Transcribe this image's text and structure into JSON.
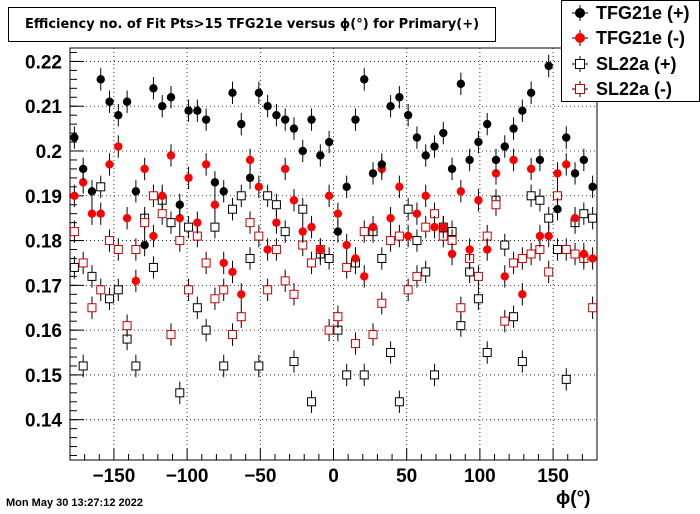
{
  "chart_data": {
    "type": "scatter",
    "title": "Efficiency no. of Fit Pts>15 TFG21e versus ϕ(°) for Primary(+)",
    "xlabel": "ϕ(°)",
    "ylabel": "",
    "xlim": [
      -180,
      180
    ],
    "ylim": [
      0.131,
      0.223
    ],
    "xticks": [
      -150,
      -100,
      -50,
      0,
      50,
      100,
      150
    ],
    "yticks": [
      0.14,
      0.15,
      0.16,
      0.17,
      0.18,
      0.19,
      0.2,
      0.21,
      0.22
    ],
    "ytick_labels": [
      "0.14",
      "0.15",
      "0.16",
      "0.17",
      "0.18",
      "0.19",
      "0.2",
      "0.21",
      "0.22"
    ],
    "grid": true,
    "legend_position": "top-right",
    "timestamp": "Mon May 30 13:27:12 2022",
    "series": [
      {
        "name": "TFG21e (+)",
        "marker": "filled-circle",
        "color": "#000000",
        "x": [
          -177,
          -171,
          -165,
          -159,
          -153,
          -147,
          -141,
          -135,
          -129,
          -123,
          -117,
          -111,
          -105,
          -99,
          -93,
          -87,
          -81,
          -75,
          -69,
          -63,
          -57,
          -51,
          -45,
          -39,
          -33,
          -27,
          -21,
          -15,
          -9,
          -3,
          3,
          9,
          15,
          21,
          27,
          33,
          39,
          45,
          51,
          57,
          63,
          69,
          75,
          81,
          87,
          93,
          99,
          105,
          111,
          117,
          123,
          129,
          135,
          141,
          147,
          153,
          159,
          165,
          171,
          177
        ],
        "y": [
          0.203,
          0.196,
          0.191,
          0.216,
          0.211,
          0.208,
          0.211,
          0.191,
          0.179,
          0.214,
          0.21,
          0.212,
          0.188,
          0.209,
          0.209,
          0.207,
          0.193,
          0.191,
          0.213,
          0.206,
          0.194,
          0.213,
          0.21,
          0.208,
          0.207,
          0.205,
          0.2,
          0.207,
          0.199,
          0.202,
          0.182,
          0.192,
          0.207,
          0.216,
          0.195,
          0.197,
          0.21,
          0.212,
          0.208,
          0.203,
          0.199,
          0.201,
          0.204,
          0.196,
          0.215,
          0.198,
          0.202,
          0.206,
          0.198,
          0.201,
          0.205,
          0.209,
          0.213,
          0.198,
          0.219,
          0.187,
          0.203,
          0.195,
          0.198,
          0.192
        ],
        "yerr": [
          0.0025,
          0.0025,
          0.0025,
          0.0025,
          0.0025,
          0.0025,
          0.0025,
          0.0025,
          0.0025,
          0.0025,
          0.0025,
          0.0025,
          0.0025,
          0.0025,
          0.0025,
          0.0025,
          0.0025,
          0.0025,
          0.0025,
          0.0025,
          0.0025,
          0.0025,
          0.0025,
          0.0025,
          0.0025,
          0.0025,
          0.0025,
          0.0025,
          0.0025,
          0.0025,
          0.0025,
          0.0025,
          0.0025,
          0.0025,
          0.0025,
          0.0025,
          0.0025,
          0.0025,
          0.0025,
          0.0025,
          0.0025,
          0.0025,
          0.0025,
          0.0025,
          0.0025,
          0.0025,
          0.0025,
          0.0025,
          0.0025,
          0.0025,
          0.0025,
          0.0025,
          0.0025,
          0.0025,
          0.0025,
          0.0025,
          0.0025,
          0.0025,
          0.0025,
          0.0025
        ]
      },
      {
        "name": "TFG21e (-)",
        "marker": "filled-circle",
        "color": "#ff0000",
        "x": [
          -177,
          -171,
          -165,
          -159,
          -153,
          -147,
          -141,
          -135,
          -129,
          -123,
          -117,
          -111,
          -105,
          -99,
          -93,
          -87,
          -81,
          -75,
          -69,
          -63,
          -57,
          -51,
          -45,
          -39,
          -33,
          -27,
          -21,
          -15,
          -9,
          -3,
          3,
          9,
          15,
          21,
          27,
          33,
          39,
          45,
          51,
          57,
          63,
          69,
          75,
          81,
          87,
          93,
          99,
          105,
          111,
          117,
          123,
          129,
          135,
          141,
          147,
          153,
          159,
          165,
          171,
          177
        ],
        "y": [
          0.19,
          0.193,
          0.186,
          0.186,
          0.197,
          0.201,
          0.185,
          0.171,
          0.196,
          0.181,
          0.19,
          0.199,
          0.185,
          0.194,
          0.184,
          0.197,
          0.188,
          0.175,
          0.173,
          0.168,
          0.198,
          0.192,
          0.178,
          0.184,
          0.196,
          0.189,
          0.182,
          0.183,
          0.178,
          0.19,
          0.186,
          0.179,
          0.176,
          0.172,
          0.183,
          0.196,
          0.185,
          0.192,
          0.181,
          0.186,
          0.19,
          0.183,
          0.183,
          0.177,
          0.191,
          0.178,
          0.189,
          0.178,
          0.195,
          0.172,
          0.198,
          0.168,
          0.196,
          0.181,
          0.181,
          0.195,
          0.197,
          0.185,
          0.177,
          0.176
        ],
        "yerr": [
          0.0025,
          0.0025,
          0.0025,
          0.0025,
          0.0025,
          0.0025,
          0.0025,
          0.0025,
          0.0025,
          0.0025,
          0.0025,
          0.0025,
          0.0025,
          0.0025,
          0.0025,
          0.0025,
          0.0025,
          0.0025,
          0.0025,
          0.0025,
          0.0025,
          0.0025,
          0.0025,
          0.0025,
          0.0025,
          0.0025,
          0.0025,
          0.0025,
          0.0025,
          0.0025,
          0.0025,
          0.0025,
          0.0025,
          0.0025,
          0.0025,
          0.0025,
          0.0025,
          0.0025,
          0.0025,
          0.0025,
          0.0025,
          0.0025,
          0.0025,
          0.0025,
          0.0025,
          0.0025,
          0.0025,
          0.0025,
          0.0025,
          0.0025,
          0.0025,
          0.0025,
          0.0025,
          0.0025,
          0.0025,
          0.0025,
          0.0025,
          0.0025,
          0.0025,
          0.0025
        ]
      },
      {
        "name": "SL22a (+)",
        "marker": "open-square",
        "color": "#000000",
        "x": [
          -177,
          -171,
          -165,
          -159,
          -153,
          -147,
          -141,
          -135,
          -129,
          -123,
          -117,
          -111,
          -105,
          -99,
          -93,
          -87,
          -81,
          -75,
          -69,
          -63,
          -57,
          -51,
          -45,
          -39,
          -33,
          -27,
          -21,
          -15,
          -9,
          -3,
          3,
          9,
          15,
          21,
          27,
          33,
          39,
          45,
          51,
          57,
          63,
          69,
          75,
          81,
          87,
          93,
          99,
          105,
          111,
          117,
          123,
          129,
          135,
          141,
          147,
          153,
          159,
          165,
          171,
          177
        ],
        "y": [
          0.174,
          0.152,
          0.172,
          0.192,
          0.167,
          0.169,
          0.158,
          0.152,
          0.185,
          0.174,
          0.189,
          0.184,
          0.146,
          0.183,
          0.165,
          0.16,
          0.183,
          0.152,
          0.187,
          0.19,
          0.176,
          0.152,
          0.19,
          0.188,
          0.182,
          0.153,
          0.187,
          0.144,
          0.177,
          0.176,
          0.16,
          0.15,
          0.175,
          0.15,
          0.182,
          0.176,
          0.155,
          0.144,
          0.187,
          0.18,
          0.173,
          0.15,
          0.183,
          0.182,
          0.161,
          0.173,
          0.167,
          0.155,
          0.189,
          0.179,
          0.163,
          0.153,
          0.19,
          0.189,
          0.185,
          0.178,
          0.149,
          0.184,
          0.186,
          0.185
        ],
        "yerr": [
          0.0025,
          0.0025,
          0.0025,
          0.0025,
          0.0025,
          0.0025,
          0.0025,
          0.0025,
          0.0025,
          0.0025,
          0.0025,
          0.0025,
          0.0025,
          0.0025,
          0.0025,
          0.0025,
          0.0025,
          0.0025,
          0.0025,
          0.0025,
          0.0025,
          0.0025,
          0.0025,
          0.0025,
          0.0025,
          0.0025,
          0.0025,
          0.0025,
          0.0025,
          0.0025,
          0.0025,
          0.0025,
          0.0025,
          0.0025,
          0.0025,
          0.0025,
          0.0025,
          0.0025,
          0.0025,
          0.0025,
          0.0025,
          0.0025,
          0.0025,
          0.0025,
          0.0025,
          0.0025,
          0.0025,
          0.0025,
          0.0025,
          0.0025,
          0.0025,
          0.0025,
          0.0025,
          0.0025,
          0.0025,
          0.0025,
          0.0025,
          0.0025,
          0.0025,
          0.0025
        ]
      },
      {
        "name": "SL22a (-)",
        "marker": "open-square",
        "color": "#cc0000",
        "x": [
          -177,
          -171,
          -165,
          -159,
          -153,
          -147,
          -141,
          -135,
          -129,
          -123,
          -117,
          -111,
          -105,
          -99,
          -93,
          -87,
          -81,
          -75,
          -69,
          -63,
          -57,
          -51,
          -45,
          -39,
          -33,
          -27,
          -21,
          -15,
          -9,
          -3,
          3,
          9,
          15,
          21,
          27,
          33,
          39,
          45,
          51,
          57,
          63,
          69,
          75,
          81,
          87,
          93,
          99,
          105,
          111,
          117,
          123,
          129,
          135,
          141,
          147,
          153,
          159,
          165,
          171,
          177
        ],
        "y": [
          0.182,
          0.175,
          0.165,
          0.169,
          0.18,
          0.178,
          0.161,
          0.178,
          0.184,
          0.19,
          0.186,
          0.159,
          0.18,
          0.169,
          0.181,
          0.175,
          0.167,
          0.169,
          0.159,
          0.163,
          0.184,
          0.181,
          0.169,
          0.178,
          0.171,
          0.168,
          0.179,
          0.175,
          0.178,
          0.16,
          0.163,
          0.174,
          0.157,
          0.182,
          0.159,
          0.166,
          0.18,
          0.181,
          0.169,
          0.172,
          0.183,
          0.186,
          0.181,
          0.18,
          0.165,
          0.176,
          0.172,
          0.181,
          0.188,
          0.162,
          0.175,
          0.176,
          0.177,
          0.178,
          0.173,
          0.19,
          0.178,
          0.177,
          0.176,
          0.165
        ],
        "yerr": [
          0.0025,
          0.0025,
          0.0025,
          0.0025,
          0.0025,
          0.0025,
          0.0025,
          0.0025,
          0.0025,
          0.0025,
          0.0025,
          0.0025,
          0.0025,
          0.0025,
          0.0025,
          0.0025,
          0.0025,
          0.0025,
          0.0025,
          0.0025,
          0.0025,
          0.0025,
          0.0025,
          0.0025,
          0.0025,
          0.0025,
          0.0025,
          0.0025,
          0.0025,
          0.0025,
          0.0025,
          0.0025,
          0.0025,
          0.0025,
          0.0025,
          0.0025,
          0.0025,
          0.0025,
          0.0025,
          0.0025,
          0.0025,
          0.0025,
          0.0025,
          0.0025,
          0.0025,
          0.0025,
          0.0025,
          0.0025,
          0.0025,
          0.0025,
          0.0025,
          0.0025,
          0.0025,
          0.0025,
          0.0025,
          0.0025,
          0.0025,
          0.0025,
          0.0025,
          0.0025
        ]
      }
    ]
  }
}
